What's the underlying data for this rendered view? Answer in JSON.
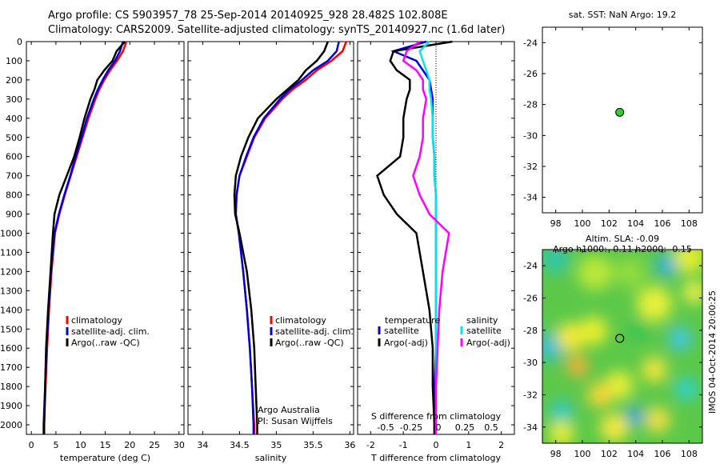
{
  "header": {
    "line1": "Argo profile: CS 5903957_78 25-Sep-2014 20140925_928 28.482S 102.808E",
    "line2": "Climatology: CARS2009. Satellite-adjusted climatology: synTS_20140927.nc (1.6d later)"
  },
  "colors": {
    "climatology": "#ff0000",
    "satellite": "#0000dd",
    "argo": "#000000",
    "sat_salinity": "#00e5ee",
    "argo_adj_salinity": "#ff00ff",
    "map_marker": "#33cc33"
  },
  "depth_axis": {
    "ylim": [
      0,
      2050
    ],
    "ticks": [
      "0",
      "100",
      "200",
      "300",
      "400",
      "500",
      "600",
      "700",
      "800",
      "900",
      "1000",
      "1100",
      "1200",
      "1300",
      "1400",
      "1500",
      "1600",
      "1700",
      "1800",
      "1900",
      "2000"
    ]
  },
  "temperature_panel": {
    "xlabel": "temperature (deg C)",
    "xticks": [
      "0",
      "5",
      "10",
      "15",
      "20",
      "25",
      "30"
    ],
    "legend": [
      "climatology",
      "satellite-adj. clim.",
      "Argo(..raw -QC)"
    ]
  },
  "salinity_panel": {
    "xlabel": "salinity",
    "xticks": [
      "34",
      "34.5",
      "35",
      "35.5",
      "36"
    ],
    "legend": [
      "climatology",
      "satellite-adj. clim.",
      "Argo(..raw -QC)"
    ],
    "note1": "Argo Australia",
    "note2": "PI: Susan Wijffels"
  },
  "difference_panel": {
    "xlabel": "T difference from climatology",
    "xticks": [
      "-2",
      "-1",
      "0",
      "1",
      "2"
    ],
    "s_label": "S difference from climatology",
    "s_ticks": [
      "-0.5",
      "-0.25",
      "0",
      "0.25",
      "0.5"
    ],
    "legend_temperature": "temperature",
    "legend_salinity": "salinity",
    "legend_t_sat": "satellite",
    "legend_t_argo": "Argo(-adj)",
    "legend_s_sat": "satellite",
    "legend_s_argo": "Argo(-adj)"
  },
  "map_top": {
    "title": "sat. SST: NaN Argo: 19.2",
    "yticks": [
      "-24",
      "-26",
      "-28",
      "-30",
      "-32",
      "-34"
    ],
    "xticks": [
      "98",
      "100",
      "102",
      "104",
      "106",
      "108"
    ]
  },
  "map_bottom": {
    "title1": "Altim. SLA: -0.09",
    "title2": "Argo h1000: -0.11 h2000: -0.15",
    "yticks": [
      "-24",
      "-26",
      "-28",
      "-30",
      "-32",
      "-34"
    ],
    "xticks": [
      "98",
      "100",
      "102",
      "104",
      "106",
      "108"
    ],
    "side_text": "IMOS 04-Oct-2014 20:00:25"
  },
  "chart_data": [
    {
      "type": "line",
      "title": "",
      "xlabel": "temperature (deg C)",
      "ylabel": "",
      "xlim": [
        -1,
        31
      ],
      "ylim": [
        2050,
        0
      ],
      "y": [
        0,
        50,
        100,
        150,
        200,
        250,
        300,
        400,
        500,
        600,
        700,
        800,
        900,
        1000,
        1200,
        1400,
        1600,
        1800,
        2000,
        2050
      ],
      "series": [
        {
          "name": "climatology",
          "x": [
            19.3,
            18.6,
            17.4,
            16.0,
            14.8,
            13.8,
            13.0,
            11.6,
            10.4,
            9.2,
            8.0,
            6.8,
            5.7,
            4.8,
            4.1,
            3.6,
            3.2,
            2.9,
            2.6,
            2.6
          ]
        },
        {
          "name": "satellite-adj. clim.",
          "x": [
            18.6,
            18.0,
            17.0,
            15.6,
            14.5,
            13.5,
            12.7,
            11.3,
            10.2,
            9.0,
            7.9,
            6.7,
            5.6,
            4.7,
            4.0,
            3.5,
            3.1,
            2.8,
            2.5,
            2.5
          ]
        },
        {
          "name": "Argo(..raw -QC)",
          "x": [
            19.0,
            17.3,
            16.5,
            14.8,
            13.4,
            12.8,
            12.0,
            10.8,
            9.8,
            8.7,
            7.2,
            5.7,
            4.7,
            4.4,
            3.9,
            3.4,
            3.0,
            2.8,
            2.6,
            2.6
          ]
        }
      ]
    },
    {
      "type": "line",
      "title": "",
      "xlabel": "salinity",
      "ylabel": "",
      "xlim": [
        33.8,
        36.05
      ],
      "ylim": [
        2050,
        0
      ],
      "y": [
        0,
        50,
        100,
        150,
        200,
        250,
        300,
        400,
        500,
        600,
        700,
        800,
        900,
        1000,
        1200,
        1400,
        1600,
        1800,
        2000,
        2050
      ],
      "series": [
        {
          "name": "climatology",
          "x": [
            35.95,
            35.9,
            35.75,
            35.55,
            35.4,
            35.22,
            35.08,
            34.85,
            34.7,
            34.6,
            34.5,
            34.46,
            34.45,
            34.49,
            34.55,
            34.6,
            34.64,
            34.67,
            34.7,
            34.7
          ]
        },
        {
          "name": "satellite-adj. clim.",
          "x": [
            35.85,
            35.82,
            35.7,
            35.5,
            35.35,
            35.18,
            35.05,
            34.83,
            34.69,
            34.59,
            34.5,
            34.46,
            34.45,
            34.49,
            34.55,
            34.6,
            34.64,
            34.67,
            34.69,
            34.69
          ]
        },
        {
          "name": "Argo(..raw -QC)",
          "x": [
            35.7,
            35.65,
            35.55,
            35.4,
            35.3,
            35.15,
            35.0,
            34.75,
            34.62,
            34.52,
            34.45,
            34.43,
            34.44,
            34.5,
            34.6,
            34.66,
            34.7,
            34.72,
            34.74,
            34.74
          ]
        }
      ]
    },
    {
      "type": "line",
      "title": "",
      "xlabel": "T difference from climatology",
      "ylabel": "",
      "xlim": [
        -2.4,
        2.4
      ],
      "ylim": [
        2050,
        0
      ],
      "y": [
        0,
        50,
        100,
        150,
        200,
        250,
        300,
        400,
        500,
        600,
        700,
        800,
        900,
        1000,
        1200,
        1400,
        1600,
        1800,
        2000,
        2050
      ],
      "series": [
        {
          "name": "temperature satellite",
          "x": [
            -0.3,
            -1.3,
            -0.6,
            -0.4,
            -0.2,
            -0.15,
            -0.1,
            -0.1,
            -0.1,
            -0.05,
            -0.05,
            0.0,
            0.0,
            0.0,
            0.0,
            0.0,
            0.0,
            -0.05,
            -0.05,
            -0.05
          ]
        },
        {
          "name": "temperature Argo(-adj)",
          "x": [
            0.5,
            -1.3,
            -1.4,
            -1.2,
            -0.8,
            -0.8,
            -0.9,
            -1.0,
            -1.0,
            -1.1,
            -1.8,
            -1.6,
            -1.2,
            -0.6,
            -0.4,
            -0.2,
            -0.1,
            -0.1,
            -0.05,
            -0.05
          ]
        },
        {
          "name": "salinity satellite",
          "x": [
            -0.2,
            -0.5,
            -0.4,
            -0.3,
            -0.2,
            -0.2,
            -0.15,
            -0.1,
            -0.1,
            -0.05,
            -0.05,
            0.0,
            0.0,
            0.0,
            0.0,
            0.0,
            0.0,
            0.0,
            0.0,
            0.0
          ]
        },
        {
          "name": "salinity Argo(-adj)",
          "x": [
            -0.5,
            -0.9,
            -1.0,
            -0.6,
            -0.4,
            -0.4,
            -0.3,
            -0.4,
            -0.4,
            -0.5,
            -0.7,
            -0.5,
            -0.2,
            0.4,
            0.2,
            0.1,
            0.05,
            0.0,
            0.0,
            0.0
          ]
        }
      ]
    },
    {
      "type": "scatter",
      "title": "sat. SST: NaN Argo: 19.2",
      "xlim": [
        97,
        109
      ],
      "ylim": [
        -35,
        -23
      ],
      "x": [
        102.8
      ],
      "y": [
        -28.5
      ]
    },
    {
      "type": "heatmap",
      "title": "Altim. SLA: -0.09",
      "xlim": [
        97,
        109
      ],
      "ylim": [
        -35,
        -23
      ],
      "marker": {
        "x": 102.8,
        "y": -28.5
      }
    }
  ]
}
